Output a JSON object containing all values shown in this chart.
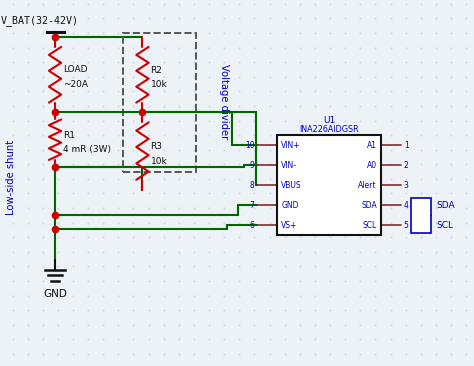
{
  "bg_color": "#edf2f7",
  "grid_color": "#b8cfe8",
  "wire_color": "#006600",
  "resistor_color": "#cc0000",
  "dashed_box_color": "#555555",
  "blue_text_color": "#0000bb",
  "black_color": "#111111",
  "red_dot_color": "#cc0000",
  "vbat_label": "V_BAT(32-42V)",
  "gnd_label": "GND",
  "load_label1": "LOAD",
  "load_label2": "~20A",
  "r1_label1": "R1",
  "r1_label2": "4 mR (3W)",
  "r2_label1": "R2",
  "r2_label2": "10k",
  "r3_label1": "R3",
  "r3_label2": "10k",
  "voltage_divider_label": "Voltage divider",
  "low_side_shunt_label": "Low-side shunt",
  "u1_label": "U1",
  "ic_label": "INA226AIDGSR",
  "pin_left_labels": [
    "VIN+",
    "VIN-",
    "VBUS",
    "GND",
    "VS+"
  ],
  "pin_left_numbers": [
    "10",
    "9",
    "8",
    "7",
    "6"
  ],
  "pin_right_labels": [
    "A1",
    "A0",
    "Alert",
    "SDA",
    "SCL"
  ],
  "pin_right_numbers": [
    "1",
    "2",
    "3",
    "4",
    "5"
  ],
  "sda_label": "SDA",
  "scl_label": "SCL"
}
